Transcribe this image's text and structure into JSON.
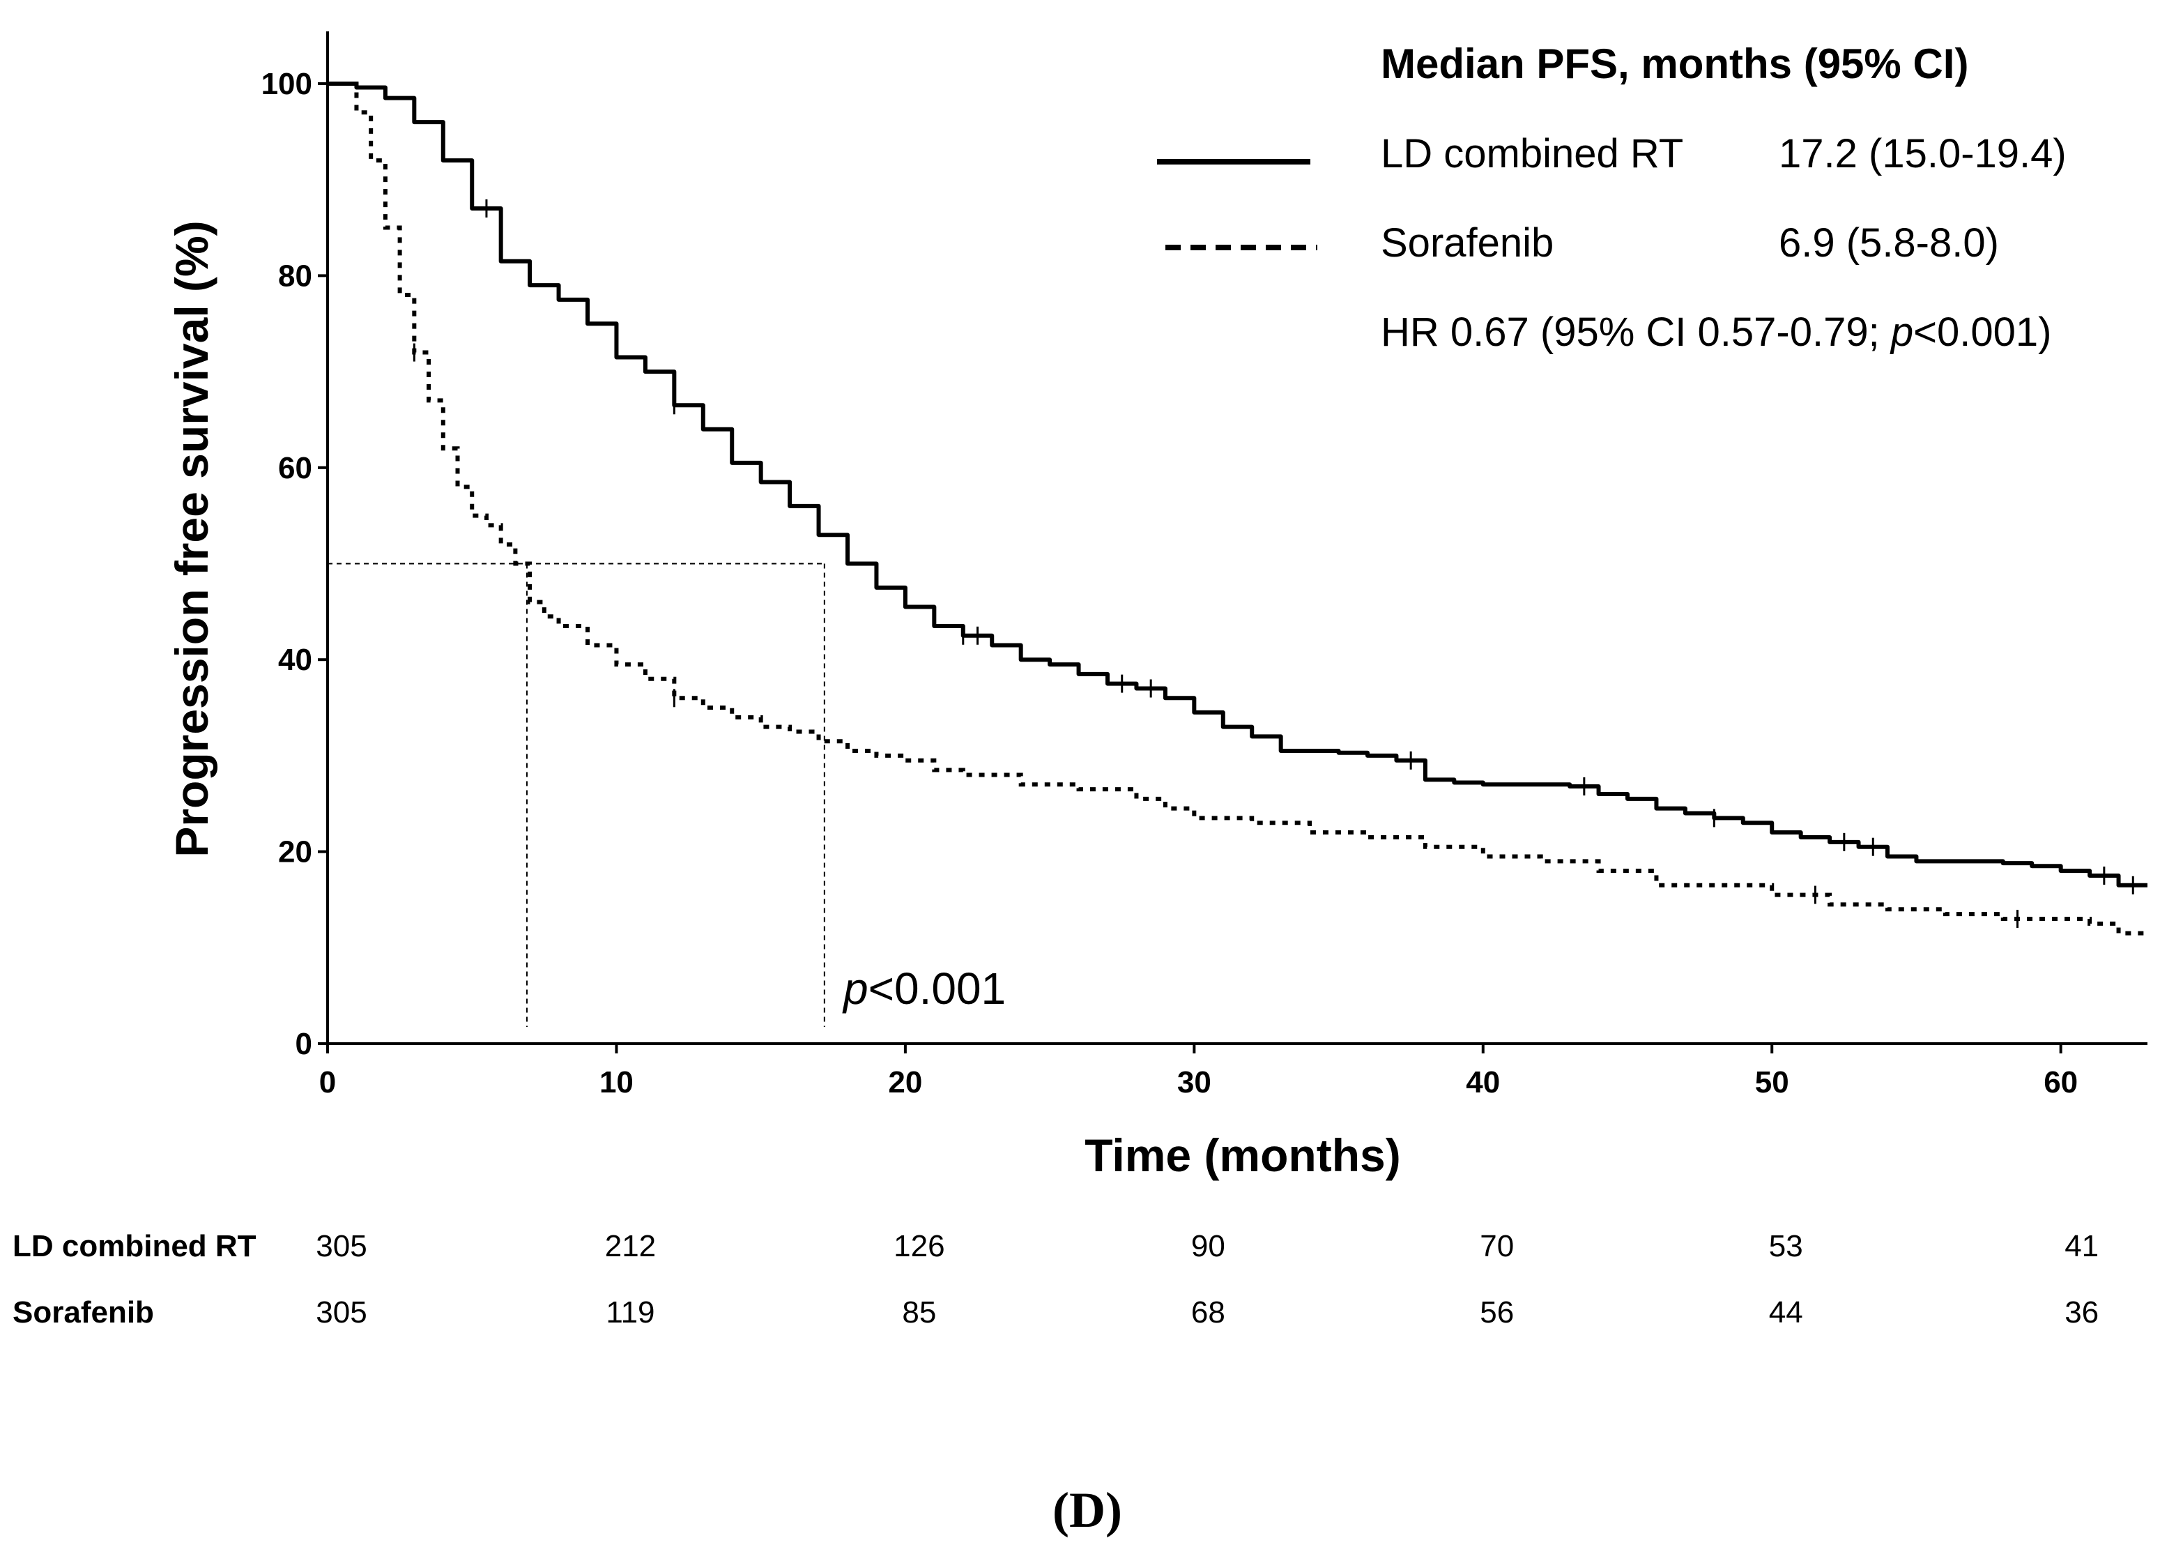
{
  "chart_data": {
    "type": "line",
    "subtype": "kaplan-meier",
    "title": "",
    "xlabel": "Time (months)",
    "ylabel": "Progression free survival (%)",
    "xlim": [
      0,
      63
    ],
    "ylim": [
      0,
      100
    ],
    "x_ticks": [
      "0",
      "10",
      "20",
      "30",
      "40",
      "50",
      "60"
    ],
    "y_ticks": [
      "0",
      "20",
      "40",
      "60",
      "80",
      "100"
    ],
    "legend": {
      "title": "Median PFS, months (95% CI)",
      "entries": [
        {
          "name": "LD combined RT",
          "value": "17.2 (15.0-19.4)",
          "style": "solid"
        },
        {
          "name": "Sorafenib",
          "value": "6.9 (5.8-8.0)",
          "style": "dashed"
        }
      ],
      "hr_prefix": "HR 0.67 (95% CI 0.57-0.79; ",
      "hr_p": "p",
      "hr_suffix": "<0.001)"
    },
    "annotation": {
      "p_italic": "p",
      "p_rest": "<0.001"
    },
    "median_guides": {
      "level": 50,
      "medians": [
        6.9,
        17.2
      ]
    },
    "series": [
      {
        "name": "LD combined RT",
        "style": "solid",
        "x": [
          0,
          1,
          2,
          3,
          4,
          5,
          6,
          7,
          8,
          9,
          10,
          11,
          12,
          13,
          14,
          15,
          16,
          17,
          18,
          19,
          20,
          21,
          22,
          23,
          24,
          25,
          26,
          27,
          28,
          29,
          30,
          31,
          32,
          33,
          35,
          36,
          37,
          38,
          39,
          40,
          42,
          43,
          44,
          45,
          46,
          47,
          48,
          49,
          50,
          51,
          52,
          53,
          54,
          55,
          56,
          57,
          58,
          59,
          60,
          61,
          62,
          63
        ],
        "y": [
          100,
          99.6,
          98.5,
          96,
          92,
          87,
          81.5,
          79,
          77.5,
          75,
          71.5,
          70,
          66.5,
          64,
          60.5,
          58.5,
          56,
          53,
          50,
          47.5,
          45.5,
          43.5,
          42.5,
          41.5,
          40,
          39.5,
          38.5,
          37.5,
          37,
          36,
          34.5,
          33,
          32,
          30.5,
          30.3,
          30,
          29.5,
          27.5,
          27.2,
          27,
          27,
          26.8,
          26,
          25.5,
          24.5,
          24,
          23.5,
          23,
          22,
          21.5,
          21,
          20.5,
          19.5,
          19,
          19,
          19,
          18.8,
          18.5,
          18,
          17.5,
          16.5,
          16.5
        ],
        "censor_x": [
          5.5,
          12,
          22,
          22.5,
          27.5,
          28.5,
          37.5,
          43.5,
          48,
          52.5,
          53.5,
          61.5,
          62.5
        ]
      },
      {
        "name": "Sorafenib",
        "style": "dashed",
        "x": [
          0,
          1,
          1.5,
          2,
          2.5,
          3,
          3.5,
          4,
          4.5,
          5,
          5.5,
          6,
          6.5,
          7,
          7.5,
          8,
          9,
          10,
          11,
          12,
          13,
          14,
          15,
          16,
          17,
          18,
          19,
          20,
          21,
          22,
          24,
          26,
          28,
          29,
          30,
          32,
          34,
          36,
          38,
          40,
          42,
          44,
          46,
          48,
          50,
          52,
          54,
          56,
          58,
          60,
          61,
          62,
          63
        ],
        "y": [
          100,
          97,
          92,
          85,
          78,
          72,
          67,
          62,
          58,
          55,
          54,
          52,
          50,
          46,
          44.5,
          43.5,
          41.5,
          39.5,
          38,
          36,
          35,
          34,
          33,
          32.5,
          31.5,
          30.5,
          30,
          29.5,
          28.5,
          28,
          27,
          26.5,
          25.5,
          24.5,
          23.5,
          23,
          22,
          21.5,
          20.5,
          19.5,
          19,
          18,
          16.5,
          16.5,
          15.5,
          14.5,
          14,
          13.5,
          13,
          13,
          12.5,
          11.5,
          11.5
        ],
        "censor_x": [
          3,
          12,
          51.5,
          58.5
        ]
      }
    ],
    "risk_table": {
      "times": [
        0,
        10,
        20,
        30,
        40,
        50,
        60
      ],
      "rows": [
        {
          "label": "LD combined RT",
          "values": [
            "305",
            "212",
            "126",
            "90",
            "70",
            "53",
            "41"
          ]
        },
        {
          "label": "Sorafenib",
          "values": [
            "305",
            "119",
            "85",
            "68",
            "56",
            "44",
            "36"
          ]
        }
      ]
    },
    "panel_label": "(D)"
  }
}
